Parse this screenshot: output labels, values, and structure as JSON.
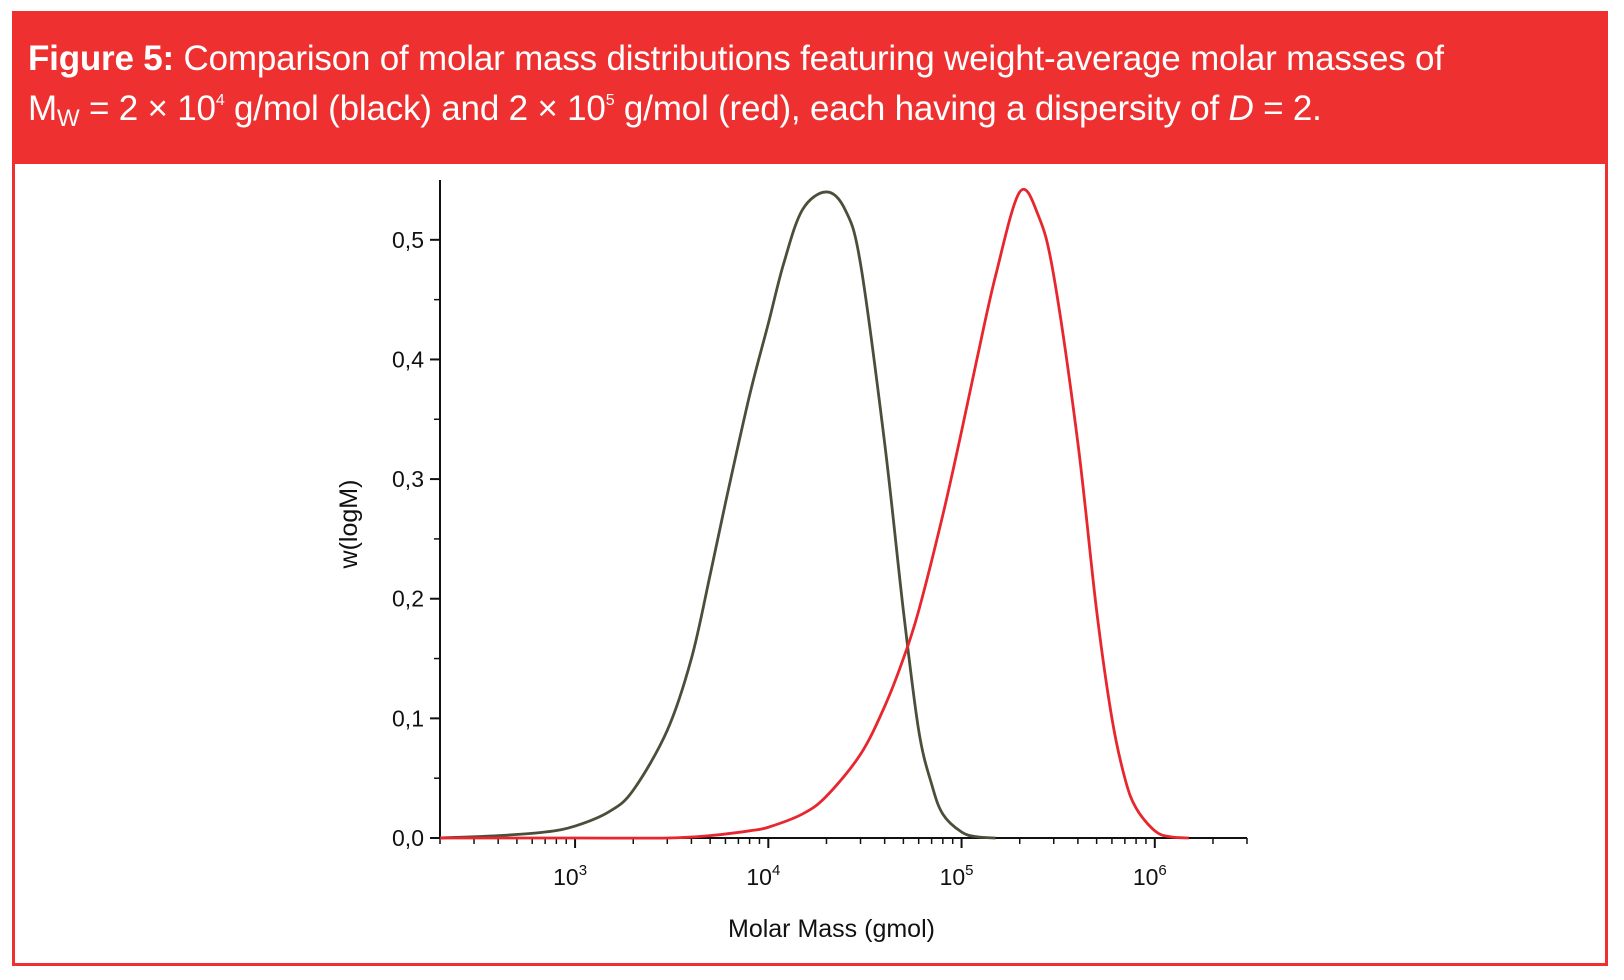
{
  "figure": {
    "label": "Figure 5:",
    "caption_line1": "Comparison of molar mass distributions featuring weight-average molar masses of",
    "caption_mw_base": "M",
    "caption_mw_sub": "W",
    "caption_eq1": "= 2 × 10",
    "caption_exp1": "4",
    "caption_mid1": " g/mol (black) and 2 × 10",
    "caption_exp2": "5",
    "caption_mid2": " g/mol (red), each having a dispersity of ",
    "caption_D": "D",
    "caption_end": " = 2."
  },
  "colors": {
    "accent": "#ee3030",
    "series_black": "#4a4f3a",
    "series_red": "#e8262d",
    "axis": "#111111"
  },
  "chart_data": {
    "type": "line",
    "title": "",
    "xlabel": "Molar Mass (gmol)",
    "ylabel": "w(logM)",
    "xscale": "log",
    "xlim": [
      200,
      3000000
    ],
    "ylim": [
      0,
      0.55
    ],
    "x_ticks": [
      {
        "value": 1000,
        "base": "10",
        "exp": "3"
      },
      {
        "value": 10000,
        "base": "10",
        "exp": "4"
      },
      {
        "value": 100000,
        "base": "10",
        "exp": "5"
      },
      {
        "value": 1000000,
        "base": "10",
        "exp": "6"
      }
    ],
    "y_ticks": [
      {
        "value": 0.0,
        "label": "0,0"
      },
      {
        "value": 0.1,
        "label": "0,1"
      },
      {
        "value": 0.2,
        "label": "0,2"
      },
      {
        "value": 0.3,
        "label": "0,3"
      },
      {
        "value": 0.4,
        "label": "0,4"
      },
      {
        "value": 0.5,
        "label": "0,5"
      }
    ],
    "series": [
      {
        "name": "Mw = 2 × 10^4 g/mol (black)",
        "color": "#4a4f3a",
        "x": [
          200,
          400,
          700,
          1000,
          1500,
          2000,
          3000,
          4000,
          5000,
          6000,
          8000,
          10000,
          12000,
          15000,
          20000,
          25000,
          30000,
          40000,
          50000,
          60000,
          70000,
          80000,
          100000,
          120000,
          150000
        ],
        "y": [
          0.0,
          0.002,
          0.005,
          0.01,
          0.022,
          0.04,
          0.09,
          0.15,
          0.22,
          0.28,
          0.37,
          0.43,
          0.48,
          0.525,
          0.54,
          0.525,
          0.48,
          0.33,
          0.19,
          0.09,
          0.045,
          0.02,
          0.005,
          0.001,
          0.0
        ]
      },
      {
        "name": "Mw = 2 × 10^5 g/mol (red)",
        "color": "#e8262d",
        "x": [
          200,
          1000,
          3000,
          5000,
          8000,
          10000,
          15000,
          20000,
          30000,
          40000,
          50000,
          60000,
          80000,
          100000,
          120000,
          150000,
          200000,
          250000,
          300000,
          400000,
          500000,
          600000,
          700000,
          800000,
          1000000,
          1200000,
          1500000
        ],
        "y": [
          0.0,
          0.0,
          0.0,
          0.002,
          0.006,
          0.009,
          0.02,
          0.035,
          0.07,
          0.11,
          0.15,
          0.19,
          0.27,
          0.34,
          0.4,
          0.47,
          0.54,
          0.52,
          0.47,
          0.33,
          0.19,
          0.1,
          0.05,
          0.025,
          0.006,
          0.001,
          0.0
        ]
      }
    ]
  }
}
